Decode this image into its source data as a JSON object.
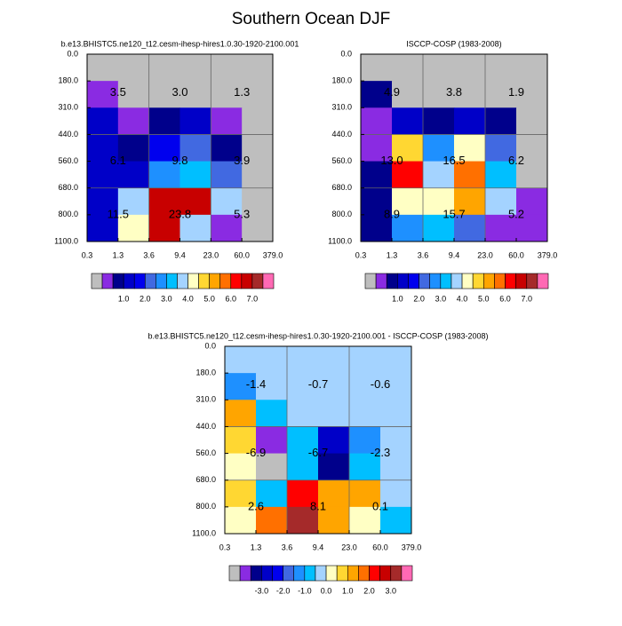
{
  "title": "Southern Ocean DJF",
  "chart_data": [
    {
      "type": "heatmap",
      "title": "b.e13.BHISTC5.ne120_t12.cesm-ihesp-hires1.0.30-1920-2100.001",
      "x_bins": [
        "0.3",
        "1.3",
        "3.6",
        "9.4",
        "23.0",
        "60.0",
        "379.0"
      ],
      "y_bins": [
        "0.0",
        "180.0",
        "310.0",
        "440.0",
        "560.0",
        "680.0",
        "800.0",
        "1100.0"
      ],
      "values": [
        [
          null,
          null,
          null,
          null,
          null,
          null
        ],
        [
          0.25,
          null,
          null,
          null,
          null,
          null
        ],
        [
          1.25,
          0.25,
          0.75,
          1.25,
          0.25,
          null
        ],
        [
          1.25,
          0.75,
          1.75,
          2.25,
          0.75,
          null
        ],
        [
          1.25,
          1.25,
          2.75,
          3.25,
          2.25,
          null
        ],
        [
          1.25,
          3.75,
          6.75,
          6.75,
          3.75,
          null
        ],
        [
          1.25,
          4.25,
          6.75,
          3.75,
          0.25,
          null
        ]
      ],
      "totals": [
        [
          "3.5",
          "3.0",
          "1.3"
        ],
        [
          "6.1",
          "9.8",
          "3.9"
        ],
        [
          "11.5",
          "23.8",
          "5.3"
        ]
      ],
      "levels": [
        0.5,
        1,
        1.5,
        2,
        2.5,
        3,
        3.5,
        4,
        4.5,
        5,
        5.5,
        6,
        6.5,
        7,
        7.5
      ],
      "colorbar_ticks": [
        {
          "value": 1,
          "label": "1.0"
        },
        {
          "value": 2,
          "label": "2.0"
        },
        {
          "value": 3,
          "label": "3.0"
        },
        {
          "value": 4,
          "label": "4.0"
        },
        {
          "value": 5,
          "label": "5.0"
        },
        {
          "value": 6,
          "label": "6.0"
        },
        {
          "value": 7,
          "label": "7.0"
        }
      ],
      "colors": [
        "#8a2be2",
        "#00008b",
        "#0000c8",
        "#0000ee",
        "#4169e1",
        "#1e90ff",
        "#00bfff",
        "#a4d3ff",
        "#ffffc4",
        "#ffd732",
        "#ffa500",
        "#ff7000",
        "#ff0000",
        "#c80000",
        "#a52a2a",
        "#ff69b4"
      ],
      "missing_color": "#bebebe"
    },
    {
      "type": "heatmap",
      "title": "ISCCP-COSP (1983-2008)",
      "x_bins": [
        "0.3",
        "1.3",
        "3.6",
        "9.4",
        "23.0",
        "60.0",
        "379.0"
      ],
      "y_bins": [
        "0.0",
        "180.0",
        "310.0",
        "440.0",
        "560.0",
        "680.0",
        "800.0",
        "1100.0"
      ],
      "values": [
        [
          null,
          null,
          null,
          null,
          null,
          null
        ],
        [
          0.75,
          null,
          null,
          null,
          null,
          null
        ],
        [
          0.25,
          1.25,
          0.75,
          1.25,
          0.75,
          null
        ],
        [
          0.25,
          4.75,
          2.75,
          4.25,
          2.25,
          null
        ],
        [
          0.75,
          6.25,
          3.75,
          5.75,
          3.25,
          null
        ],
        [
          0.75,
          4.25,
          4.25,
          5.25,
          3.75,
          0.25
        ],
        [
          0.75,
          2.75,
          3.25,
          2.25,
          0.25,
          0.25
        ]
      ],
      "totals": [
        [
          "4.9",
          "3.8",
          "1.9"
        ],
        [
          "13.0",
          "16.5",
          "6.2"
        ],
        [
          "8.9",
          "15.7",
          "5.2"
        ]
      ],
      "levels": [
        0.5,
        1,
        1.5,
        2,
        2.5,
        3,
        3.5,
        4,
        4.5,
        5,
        5.5,
        6,
        6.5,
        7,
        7.5
      ],
      "colorbar_ticks": [
        {
          "value": 1,
          "label": "1.0"
        },
        {
          "value": 2,
          "label": "2.0"
        },
        {
          "value": 3,
          "label": "3.0"
        },
        {
          "value": 4,
          "label": "4.0"
        },
        {
          "value": 5,
          "label": "5.0"
        },
        {
          "value": 6,
          "label": "6.0"
        },
        {
          "value": 7,
          "label": "7.0"
        }
      ],
      "colors": [
        "#8a2be2",
        "#00008b",
        "#0000c8",
        "#0000ee",
        "#4169e1",
        "#1e90ff",
        "#00bfff",
        "#a4d3ff",
        "#ffffc4",
        "#ffd732",
        "#ffa500",
        "#ff7000",
        "#ff0000",
        "#c80000",
        "#a52a2a",
        "#ff69b4"
      ],
      "missing_color": "#bebebe"
    },
    {
      "type": "heatmap",
      "title": "b.e13.BHISTC5.ne120_t12.cesm-ihesp-hires1.0.30-1920-2100.001 - ISCCP-COSP (1983-2008)",
      "x_bins": [
        "0.3",
        "1.3",
        "3.6",
        "9.4",
        "23.0",
        "60.0",
        "379.0"
      ],
      "y_bins": [
        "0.0",
        "180.0",
        "310.0",
        "440.0",
        "560.0",
        "680.0",
        "800.0",
        "1100.0"
      ],
      "values": [
        [
          -0.25,
          -0.25,
          -0.25,
          -0.25,
          -0.25,
          -0.25
        ],
        [
          -1.25,
          -0.25,
          -0.25,
          -0.25,
          -0.25,
          -0.25
        ],
        [
          1.25,
          -0.75,
          -0.25,
          -0.25,
          -0.25,
          -0.25
        ],
        [
          0.75,
          -3.75,
          -0.75,
          -2.75,
          -1.25,
          -0.25
        ],
        [
          0.25,
          null,
          -0.75,
          -3.25,
          -0.75,
          -0.25
        ],
        [
          0.75,
          -0.75,
          2.25,
          1.25,
          1.25,
          -0.25
        ],
        [
          0.25,
          1.75,
          3.25,
          1.25,
          0.25,
          -0.75
        ]
      ],
      "totals": [
        [
          "-1.4",
          "-0.7",
          "-0.6"
        ],
        [
          "-6.9",
          "-6.7",
          "-2.3"
        ],
        [
          "2.6",
          "8.1",
          "0.1"
        ]
      ],
      "levels": [
        -3.5,
        -3,
        -2.5,
        -2,
        -1.5,
        -1,
        -0.5,
        0,
        0.5,
        1,
        1.5,
        2,
        2.5,
        3,
        3.5
      ],
      "colorbar_ticks": [
        {
          "value": -3,
          "label": "-3.0"
        },
        {
          "value": -2,
          "label": "-2.0"
        },
        {
          "value": -1,
          "label": "-1.0"
        },
        {
          "value": 0,
          "label": "0.0"
        },
        {
          "value": 1,
          "label": "1.0"
        },
        {
          "value": 2,
          "label": "2.0"
        },
        {
          "value": 3,
          "label": "3.0"
        }
      ],
      "colors": [
        "#8a2be2",
        "#00008b",
        "#0000c8",
        "#0000ee",
        "#4169e1",
        "#1e90ff",
        "#00bfff",
        "#a4d3ff",
        "#ffffc4",
        "#ffd732",
        "#ffa500",
        "#ff7000",
        "#ff0000",
        "#c80000",
        "#a52a2a",
        "#ff69b4"
      ],
      "missing_color": "#bebebe"
    }
  ]
}
